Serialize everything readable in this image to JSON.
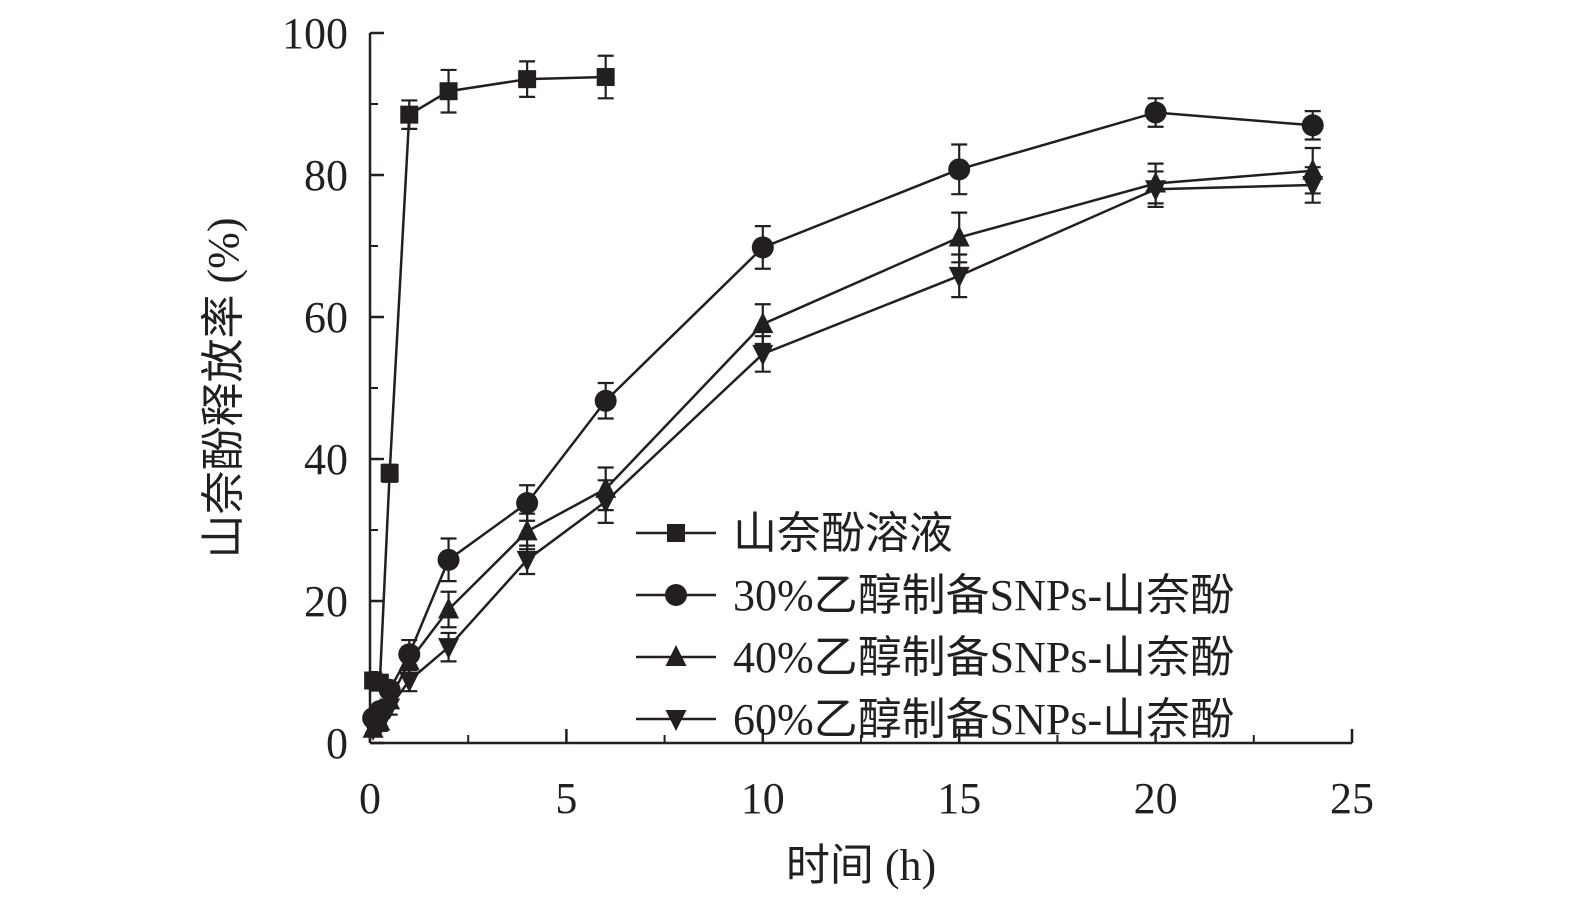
{
  "chart_data": {
    "type": "line",
    "title": "",
    "xlabel": "时间 (h)",
    "ylabel": "山奈酚释放率 (%)",
    "xlim": [
      0,
      25
    ],
    "ylim": [
      0,
      100
    ],
    "x_ticks": [
      0,
      5,
      10,
      15,
      20,
      25
    ],
    "y_ticks": [
      0,
      20,
      40,
      60,
      80,
      100
    ],
    "grid": false,
    "legend_position": "bottom-right",
    "series": [
      {
        "name": "山奈酚溶液",
        "marker": "square",
        "x": [
          0.08,
          0.25,
          0.5,
          1,
          2,
          4,
          6
        ],
        "y": [
          8.8,
          8.5,
          38,
          88.5,
          91.8,
          93.5,
          93.8
        ],
        "error": [
          0.8,
          0.8,
          1.2,
          2.0,
          3.0,
          2.5,
          3.0
        ]
      },
      {
        "name": "30%乙醇制备SNPs-山奈酚",
        "marker": "circle",
        "x": [
          0.08,
          0.25,
          0.5,
          1,
          2,
          4,
          6,
          10,
          15,
          20,
          24
        ],
        "y": [
          3.5,
          4.5,
          7.5,
          12.5,
          25.8,
          33.8,
          48.2,
          69.8,
          80.8,
          88.8,
          87.0
        ],
        "error": [
          0.8,
          0.8,
          1.0,
          2.0,
          3.0,
          2.5,
          2.5,
          3.0,
          3.5,
          2.0,
          2.0
        ]
      },
      {
        "name": "40%乙醇制备SNPs-山奈酚",
        "marker": "triangle-up",
        "x": [
          0.08,
          0.25,
          0.5,
          1,
          2,
          4,
          6,
          10,
          15,
          20,
          24
        ],
        "y": [
          2.0,
          3.0,
          6.0,
          11.5,
          18.8,
          29.8,
          35.8,
          59.0,
          71.2,
          78.8,
          80.6
        ],
        "error": [
          0.6,
          0.8,
          1.0,
          2.0,
          2.5,
          2.5,
          3.0,
          2.8,
          3.5,
          2.8,
          3.2
        ]
      },
      {
        "name": "60%乙醇制备SNPs-山奈酚",
        "marker": "triangle-down",
        "x": [
          0.08,
          0.25,
          0.5,
          1,
          2,
          4,
          6,
          10,
          15,
          20,
          24
        ],
        "y": [
          2.0,
          2.5,
          5.0,
          8.8,
          13.5,
          25.8,
          34.0,
          54.8,
          65.8,
          78.0,
          78.6
        ],
        "error": [
          0.6,
          0.8,
          1.0,
          1.5,
          2.0,
          2.0,
          3.0,
          2.5,
          3.0,
          2.5,
          2.5
        ]
      }
    ]
  }
}
